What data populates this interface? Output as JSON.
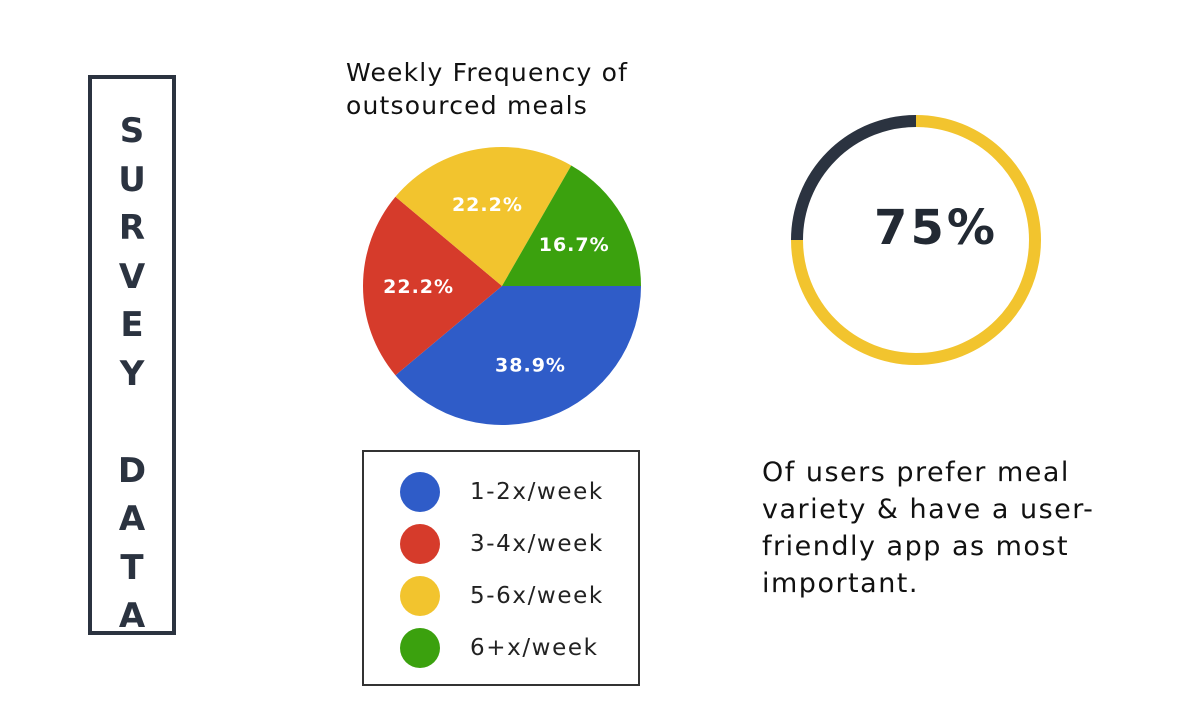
{
  "side_title": [
    "S",
    "U",
    "R",
    "V",
    "E",
    "Y",
    "",
    "D",
    "A",
    "T",
    "A"
  ],
  "chart_data": [
    {
      "type": "pie",
      "title_lines": [
        "Weekly Frequency of",
        "outsourced meals"
      ],
      "slices": [
        {
          "label": "1-2x/week",
          "value": 38.9,
          "display": "38.9%",
          "color": "#2f5cc8"
        },
        {
          "label": "3-4x/week",
          "value": 22.2,
          "display": "22.2%",
          "color": "#d63b2b"
        },
        {
          "label": "5-6x/week",
          "value": 22.2,
          "display": "22.2%",
          "color": "#f2c42e"
        },
        {
          "label": "6+x/week",
          "value": 16.7,
          "display": "16.7%",
          "color": "#3ba10e"
        }
      ],
      "legend": [
        "1-2x/week",
        "3-4x/week",
        "5-6x/week",
        "6+x/week"
      ]
    },
    {
      "type": "donut",
      "value": 75,
      "display": "75%",
      "colors": {
        "filled": "#f2c42e",
        "remaining": "#2b3340"
      }
    }
  ],
  "caption_lines": [
    "Of users prefer meal",
    "variety & have a user-",
    "friendly app as most",
    "important."
  ]
}
